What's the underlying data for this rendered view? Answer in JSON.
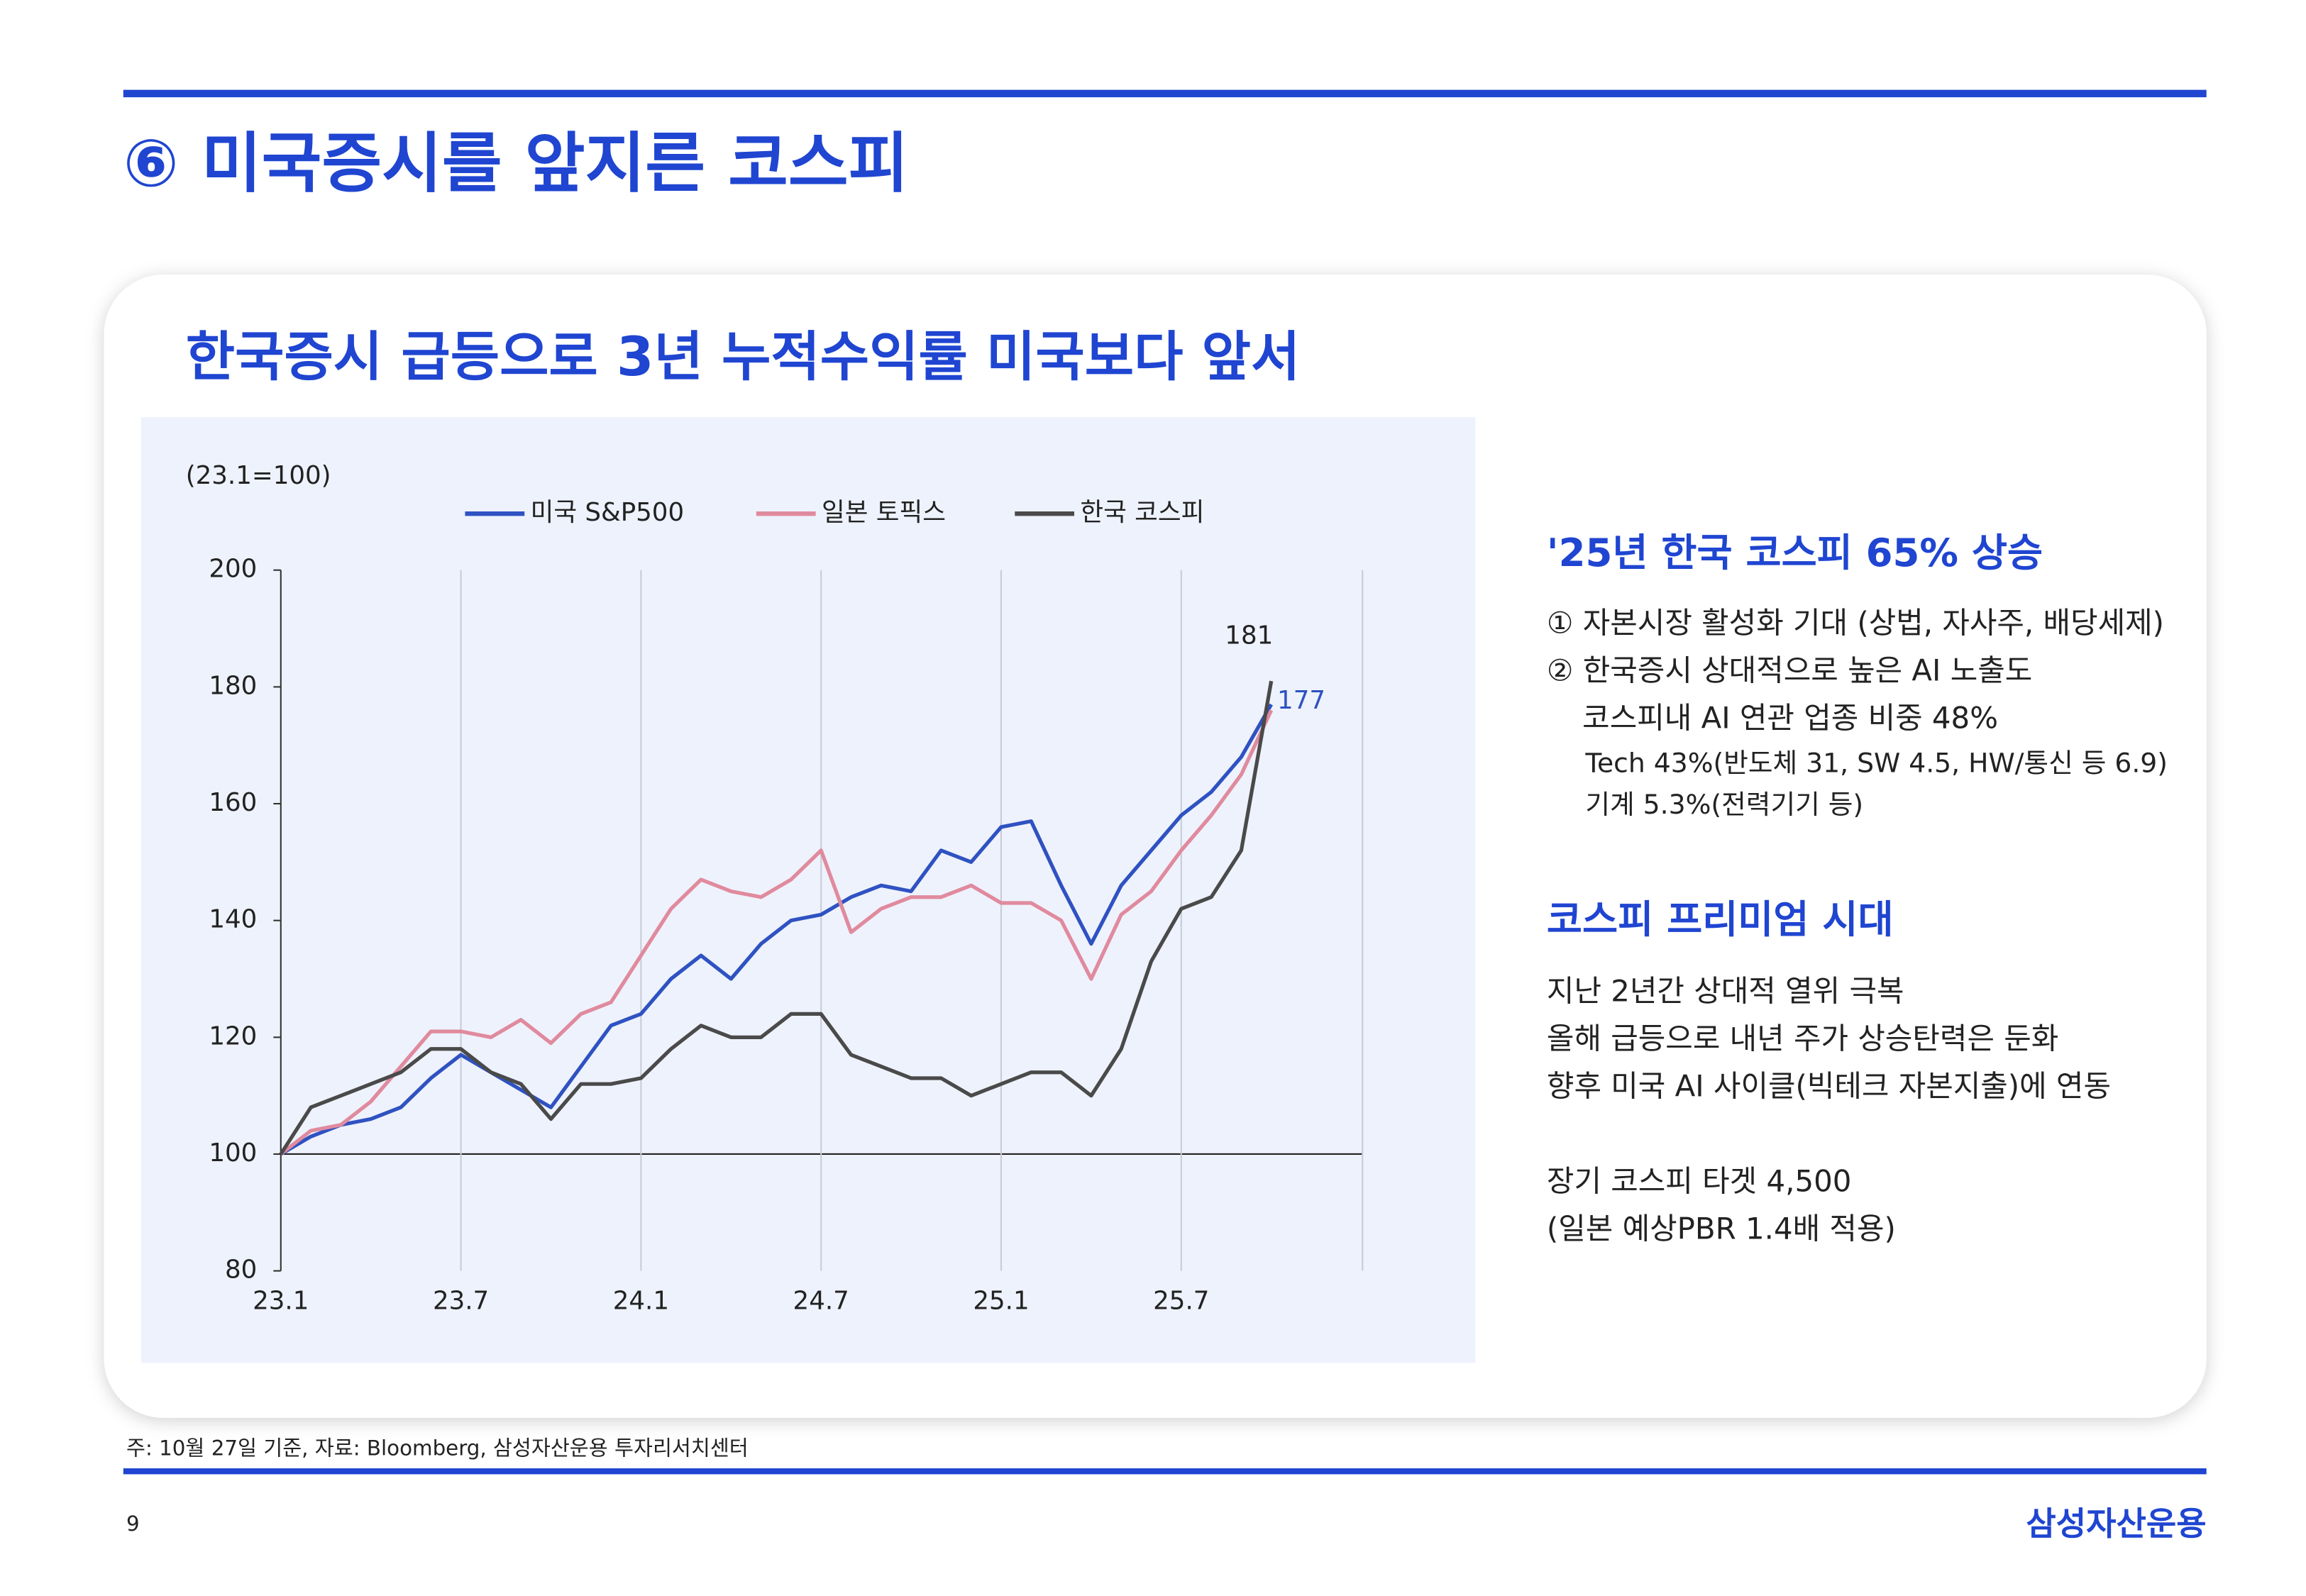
{
  "header": {
    "title": "⑥ 미국증시를 앞지른 코스피"
  },
  "chart_data": {
    "type": "line",
    "title": "한국증시 급등으로 3년 누적수익률 미국보다 앞서",
    "y_label": "(23.1=100)",
    "categories": [
      "23.1",
      null,
      null,
      null,
      null,
      null,
      "23.7",
      null,
      null,
      null,
      null,
      null,
      "24.1",
      null,
      null,
      null,
      null,
      null,
      "24.7",
      null,
      null,
      null,
      null,
      null,
      "25.1",
      null,
      null,
      null,
      null,
      null,
      "25.7",
      null,
      null,
      null,
      null,
      null,
      null
    ],
    "series": [
      {
        "name": "미국 S&P500",
        "color": "#2f52c2",
        "values": [
          100,
          103,
          105,
          106,
          108,
          113,
          117,
          114,
          111,
          108,
          115,
          122,
          124,
          130,
          134,
          130,
          136,
          140,
          141,
          144,
          146,
          145,
          152,
          150,
          156,
          157,
          146,
          136,
          146,
          152,
          158,
          162,
          168,
          177,
          null,
          null,
          null
        ]
      },
      {
        "name": "일본 토픽스",
        "color": "#e08a9e",
        "values": [
          100,
          104,
          105,
          109,
          115,
          121,
          121,
          120,
          123,
          119,
          124,
          126,
          134,
          142,
          147,
          145,
          144,
          147,
          152,
          138,
          142,
          144,
          144,
          146,
          143,
          143,
          140,
          130,
          141,
          145,
          152,
          158,
          165,
          176,
          null,
          null,
          null
        ]
      },
      {
        "name": "한국 코스피",
        "color": "#4a4a4a",
        "values": [
          100,
          108,
          110,
          112,
          114,
          118,
          118,
          114,
          112,
          106,
          112,
          112,
          113,
          118,
          122,
          120,
          120,
          124,
          124,
          117,
          115,
          113,
          113,
          110,
          112,
          114,
          114,
          110,
          118,
          133,
          142,
          144,
          152,
          181,
          null,
          null,
          null
        ]
      }
    ],
    "ylim": [
      80,
      200
    ],
    "yticks": [
      80,
      100,
      120,
      140,
      160,
      180,
      200
    ],
    "grid": true
  },
  "side": {
    "sections": [
      {
        "title": "'25년 한국 코스피 65% 상승",
        "lines": [
          "① 자본시장 활성화 기대 (상법, 자사주, 배당세제)",
          "② 한국증시 상대적으로 높은 AI 노출도",
          "코스피내 AI 연관 업종 비중 48%",
          "Tech 43%(반도체 31, SW 4.5, HW/통신 등 6.9)",
          "기계 5.3%(전력기기 등)"
        ]
      },
      {
        "title": "코스피 프리미엄 시대",
        "lines": [
          "지난 2년간 상대적 열위 극복",
          "올해 급등으로 내년 주가 상승탄력은 둔화",
          "향후 미국 AI 사이클(빅테크 자본지출)에 연동",
          "장기 코스피 타겟 4,500",
          "(일본 예상PBR 1.4배 적용)"
        ]
      }
    ]
  },
  "footer": {
    "note": "주: 10월 27일 기준, 자료: Bloomberg, 삼성자산운용 투자리서치센터",
    "page": "9",
    "logo": "삼성자산운용"
  }
}
